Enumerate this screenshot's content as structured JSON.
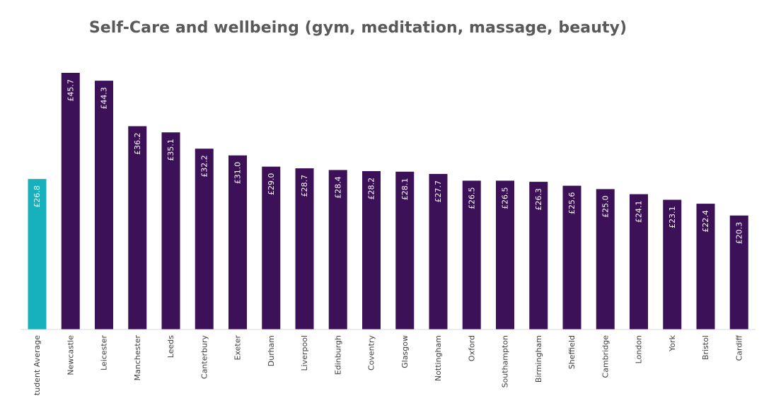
{
  "chart_data": {
    "type": "bar",
    "title": "Self-Care and wellbeing (gym, meditation, massage, beauty)",
    "xlabel": "",
    "ylabel": "",
    "ylim": [
      0,
      45.7
    ],
    "value_prefix": "£",
    "categories": [
      "Student Average",
      "Newcastle",
      "Leicester",
      "Manchester",
      "Leeds",
      "Canterbury",
      "Exeter",
      "Durham",
      "Liverpool",
      "Edinburgh",
      "Coventry",
      "Glasgow",
      "Nottingham",
      "Oxford",
      "Southampton",
      "Birmingham",
      "Sheffield",
      "Cambridge",
      "London",
      "York",
      "Bristol",
      "Cardiff"
    ],
    "values": [
      26.8,
      45.7,
      44.3,
      36.2,
      35.1,
      32.2,
      31.0,
      29.0,
      28.7,
      28.4,
      28.2,
      28.1,
      27.7,
      26.5,
      26.5,
      26.3,
      25.6,
      25.0,
      24.1,
      23.1,
      22.4,
      20.3
    ],
    "labels": [
      "£26.8",
      "£45.7",
      "£44.3",
      "£36.2",
      "£35.1",
      "£32.2",
      "£31.0",
      "£29.0",
      "£28.7",
      "£28.4",
      "£28.2",
      "£28.1",
      "£27.7",
      "£26.5",
      "£26.5",
      "£26.3",
      "£25.6",
      "£25.0",
      "£24.1",
      "£23.1",
      "£22.4",
      "£20.3"
    ],
    "highlight_category": "Student Average",
    "colors": {
      "highlight": "#17b1bd",
      "default": "#3d1157",
      "axis": "#d9d9d9"
    }
  }
}
